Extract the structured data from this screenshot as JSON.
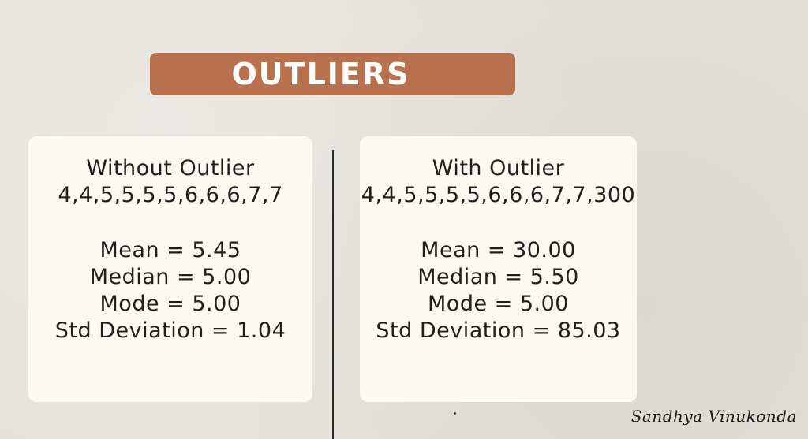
{
  "title": "OUTLIERS",
  "left_panel": {
    "heading": "Without Outlier",
    "dataset": "4,4,5,5,5,5,6,6,6,7,7",
    "mean": "Mean = 5.45",
    "median": "Median = 5.00",
    "mode": "Mode = 5.00",
    "std": "Std Deviation = 1.04"
  },
  "right_panel": {
    "heading": "With Outlier",
    "dataset": "4,4,5,5,5,5,6,6,6,7,7,300",
    "mean": "Mean = 30.00",
    "median": "Median = 5.50",
    "mode": "Mode = 5.00",
    "std": "Std Deviation = 85.03"
  },
  "signature": "Sandhya Vinukonda",
  "colors": {
    "background": "#e4e1db",
    "banner": "#b8704d",
    "card": "#fcf8f2",
    "text": "#1f1f1f"
  }
}
